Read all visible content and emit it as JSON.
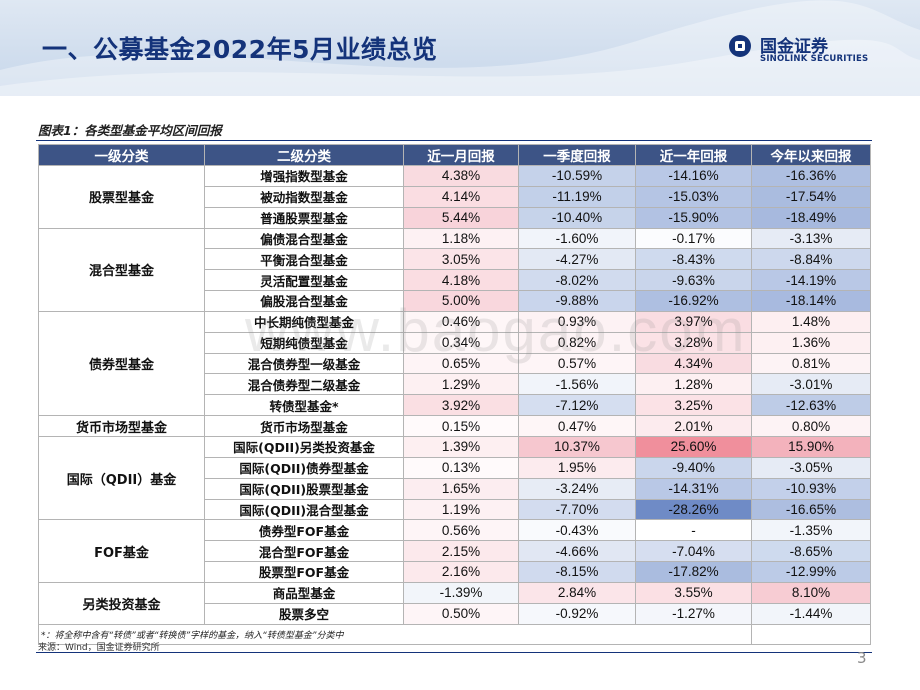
{
  "header": {
    "title": "一、公募基金2022年5月业绩总览",
    "logo_cn": "国金证券",
    "logo_en": "SINOLINK SECURITIES"
  },
  "figure_title": "图表1：各类型基金平均区间回报",
  "columns": [
    "一级分类",
    "二级分类",
    "近一月回报",
    "一季度回报",
    "近一年回报",
    "今年以来回报"
  ],
  "groups": [
    {
      "name": "股票型基金",
      "rows": [
        {
          "name": "增强指数型基金",
          "values": [
            "4.38%",
            "-10.59%",
            "-14.16%",
            "-16.36%"
          ],
          "colors": [
            "#f9dbe0",
            "#c5d2ea",
            "#b9c8e6",
            "#aebfe1"
          ]
        },
        {
          "name": "被动指数型基金",
          "values": [
            "4.14%",
            "-11.19%",
            "-15.03%",
            "-17.54%"
          ],
          "colors": [
            "#fadde2",
            "#c2d0e9",
            "#b5c5e4",
            "#aabcdf"
          ]
        },
        {
          "name": "普通股票型基金",
          "values": [
            "5.44%",
            "-10.40%",
            "-15.90%",
            "-18.49%"
          ],
          "colors": [
            "#f8d3da",
            "#c6d3ea",
            "#b2c2e3",
            "#a7b9de"
          ]
        }
      ]
    },
    {
      "name": "混合型基金",
      "rows": [
        {
          "name": "偏债混合型基金",
          "values": [
            "1.18%",
            "-1.60%",
            "-0.17%",
            "-3.13%"
          ],
          "colors": [
            "#fdf1f3",
            "#f1f4fa",
            "#fbfcfe",
            "#e6ebf5"
          ]
        },
        {
          "name": "平衡混合型基金",
          "values": [
            "3.05%",
            "-4.27%",
            "-8.43%",
            "-8.84%"
          ],
          "colors": [
            "#fbe4e8",
            "#e3e9f4",
            "#cfdaee",
            "#cdd8ed"
          ]
        },
        {
          "name": "灵活配置型基金",
          "values": [
            "4.18%",
            "-8.02%",
            "-9.63%",
            "-14.19%"
          ],
          "colors": [
            "#fadde2",
            "#d1dbee",
            "#c9d5eb",
            "#b9c8e6"
          ]
        },
        {
          "name": "偏股混合型基金",
          "values": [
            "5.00%",
            "-9.88%",
            "-16.92%",
            "-18.14%"
          ],
          "colors": [
            "#f9d7dd",
            "#c9d5ec",
            "#aebfe1",
            "#a8badf"
          ]
        }
      ]
    },
    {
      "name": "债券型基金",
      "rows": [
        {
          "name": "中长期纯债型基金",
          "values": [
            "0.46%",
            "0.93%",
            "3.97%",
            "1.48%"
          ],
          "colors": [
            "#fef6f7",
            "#fdf2f4",
            "#fadde2",
            "#fdeff1"
          ]
        },
        {
          "name": "短期纯债型基金",
          "values": [
            "0.34%",
            "0.82%",
            "3.28%",
            "1.36%"
          ],
          "colors": [
            "#fef7f8",
            "#fdf3f5",
            "#fbe2e6",
            "#fdf0f2"
          ]
        },
        {
          "name": "混合债券型一级基金",
          "values": [
            "0.65%",
            "0.57%",
            "4.34%",
            "0.81%"
          ],
          "colors": [
            "#fef4f6",
            "#fef5f7",
            "#f9dce1",
            "#fdf3f5"
          ]
        },
        {
          "name": "混合债券型二级基金",
          "values": [
            "1.29%",
            "-1.56%",
            "1.28%",
            "-3.01%"
          ],
          "colors": [
            "#fdf0f2",
            "#f1f4fa",
            "#fdf0f2",
            "#e6ebf5"
          ]
        },
        {
          "name": "转债型基金*",
          "values": [
            "3.92%",
            "-7.12%",
            "3.25%",
            "-12.63%"
          ],
          "colors": [
            "#fadfe3",
            "#d5def0",
            "#fbe2e6",
            "#becce7"
          ]
        }
      ]
    },
    {
      "name": "货币市场型基金",
      "rows": [
        {
          "name": "货币市场型基金",
          "values": [
            "0.15%",
            "0.47%",
            "2.01%",
            "0.80%"
          ],
          "colors": [
            "#fffafb",
            "#fef6f7",
            "#fcebee",
            "#fdf3f5"
          ]
        }
      ]
    },
    {
      "name": "国际（QDII）基金",
      "rows": [
        {
          "name": "国际(QDII)另类投资基金",
          "values": [
            "1.39%",
            "10.37%",
            "25.60%",
            "15.90%"
          ],
          "colors": [
            "#fdeff1",
            "#f6c7cf",
            "#f08f9c",
            "#f3b2bc"
          ]
        },
        {
          "name": "国际(QDII)债券型基金",
          "values": [
            "0.13%",
            "1.95%",
            "-9.40%",
            "-3.05%"
          ],
          "colors": [
            "#fffafb",
            "#fcebee",
            "#cad6ec",
            "#e6ebf5"
          ]
        },
        {
          "name": "国际(QDII)股票型基金",
          "values": [
            "1.65%",
            "-3.24%",
            "-14.31%",
            "-10.93%"
          ],
          "colors": [
            "#fcedf0",
            "#e7ecf5",
            "#b9c8e6",
            "#c3d0ea"
          ]
        },
        {
          "name": "国际(QDII)混合型基金",
          "values": [
            "1.19%",
            "-7.70%",
            "-28.26%",
            "-16.65%"
          ],
          "colors": [
            "#fdf1f3",
            "#d3dcef",
            "#6f8bc6",
            "#adbee0"
          ]
        }
      ]
    },
    {
      "name": "FOF基金",
      "rows": [
        {
          "name": "债券型FOF基金",
          "values": [
            "0.56%",
            "-0.43%",
            "-",
            "-1.35%"
          ],
          "colors": [
            "#fef5f7",
            "#f9fafd",
            "#ffffff",
            "#f2f5fa"
          ]
        },
        {
          "name": "混合型FOF基金",
          "values": [
            "2.15%",
            "-4.66%",
            "-7.04%",
            "-8.65%"
          ],
          "colors": [
            "#fce9ec",
            "#e1e7f3",
            "#d6def0",
            "#cedaee"
          ]
        },
        {
          "name": "股票型FOF基金",
          "values": [
            "2.16%",
            "-8.15%",
            "-17.82%",
            "-12.99%"
          ],
          "colors": [
            "#fce9ec",
            "#d0daee",
            "#aabcdf",
            "#bccbe7"
          ]
        }
      ]
    },
    {
      "name": "另类投资基金",
      "rows": [
        {
          "name": "商品型基金",
          "values": [
            "-1.39%",
            "2.84%",
            "3.55%",
            "8.10%"
          ],
          "colors": [
            "#f2f5fa",
            "#fbe5e9",
            "#fbe0e4",
            "#f7ccd3"
          ]
        },
        {
          "name": "股票多空",
          "values": [
            "0.50%",
            "-0.92%",
            "-1.27%",
            "-1.44%"
          ],
          "colors": [
            "#fef5f7",
            "#f6f8fc",
            "#f4f6fb",
            "#f2f5fa"
          ]
        }
      ]
    }
  ],
  "footnote": "*：将全称中含有“转债”或者“转换债”字样的基金，纳入“转债型基金”分类中",
  "source": "来源：Wind，国金证券研究所",
  "page_number": "3",
  "watermark": "www.baogao.com",
  "colors": {
    "header_fill": "#3d5486",
    "title_text": "#14337a",
    "positive": "#f08f9c",
    "negative": "#6f8bc6"
  }
}
